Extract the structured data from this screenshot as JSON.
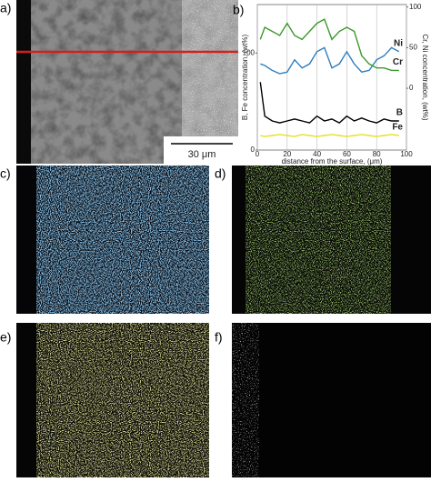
{
  "panels": {
    "a": "a)",
    "b": "b)",
    "c": "c)",
    "d": "d)",
    "e": "e)",
    "f": "f)"
  },
  "scale_bar": "30 μm",
  "chart_data": {
    "type": "line",
    "xlabel": "distance from the surface, (μm)",
    "ylabel": "B, Fe concentration, (wt%)",
    "y2label": "Cr, Ni concentration, (wt%)",
    "x": [
      2,
      5,
      10,
      15,
      20,
      25,
      30,
      35,
      40,
      45,
      50,
      55,
      60,
      65,
      70,
      75,
      80,
      85,
      90,
      95
    ],
    "series": [
      {
        "name": "Ni",
        "color": "#2f7fc1",
        "axis": "y2",
        "values": [
          30,
          28,
          22,
          18,
          20,
          35,
          25,
          30,
          45,
          50,
          25,
          30,
          45,
          30,
          20,
          22,
          35,
          40,
          50,
          45
        ]
      },
      {
        "name": "Cr",
        "color": "#3a9a2a",
        "axis": "y2",
        "values": [
          60,
          75,
          70,
          65,
          80,
          65,
          60,
          70,
          80,
          85,
          60,
          70,
          75,
          70,
          40,
          30,
          25,
          25,
          22,
          22
        ]
      },
      {
        "name": "B",
        "color": "#000000",
        "values": [
          70,
          35,
          30,
          28,
          30,
          32,
          30,
          28,
          35,
          30,
          32,
          28,
          35,
          30,
          33,
          30,
          28,
          32,
          30,
          30
        ]
      },
      {
        "name": "Fe",
        "color": "#e8e020",
        "values": [
          15,
          14,
          15,
          16,
          15,
          14,
          16,
          15,
          14,
          15,
          16,
          15,
          14,
          15,
          16,
          15,
          14,
          15,
          16,
          15
        ]
      }
    ],
    "xlim": [
      0,
      100
    ],
    "xticks": [
      0,
      20,
      40,
      60,
      80,
      100
    ],
    "ylim": [
      0,
      150
    ],
    "yticks": [
      0,
      100
    ],
    "y2lim": [
      -76,
      103
    ],
    "y2ticks": [
      0,
      50,
      100
    ],
    "grid": "x"
  }
}
